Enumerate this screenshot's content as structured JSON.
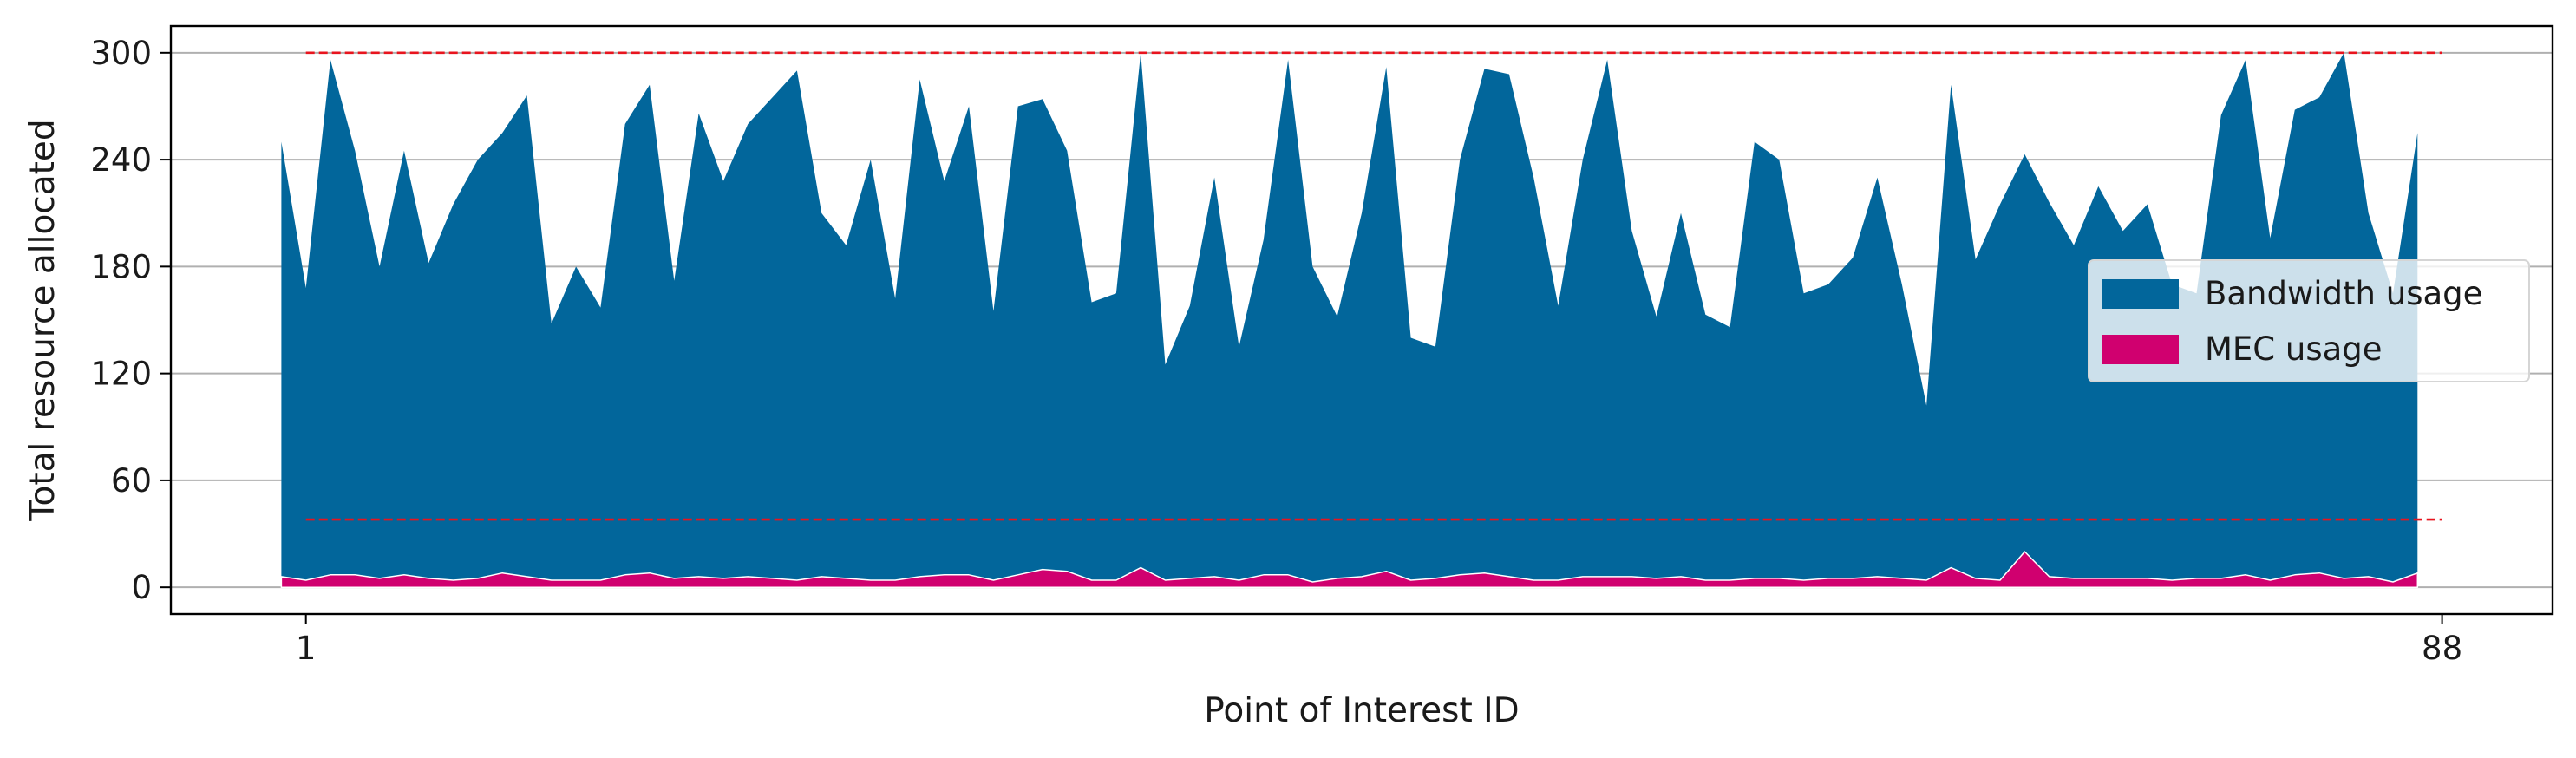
{
  "chart_data": {
    "type": "area",
    "title": "",
    "xlabel": "Point of Interest ID",
    "ylabel": "Total resource allocated",
    "x_ticks": [
      1,
      88
    ],
    "y_ticks": [
      0,
      60,
      120,
      180,
      240,
      300
    ],
    "xlim": [
      -4.5,
      92.5
    ],
    "ylim": [
      -15,
      315
    ],
    "x_start": 0,
    "grid": "horizontal",
    "legend_position": "center-right",
    "series": [
      {
        "name": "Bandwidth usage",
        "color": "#02669b",
        "values": [
          250,
          168,
          296,
          245,
          180,
          245,
          182,
          215,
          240,
          255,
          276,
          148,
          180,
          157,
          260,
          282,
          172,
          266,
          228,
          260,
          275,
          290,
          210,
          192,
          240,
          162,
          285,
          228,
          270,
          155,
          270,
          274,
          245,
          160,
          165,
          300,
          125,
          158,
          230,
          135,
          195,
          296,
          180,
          152,
          210,
          292,
          140,
          135,
          240,
          291,
          288,
          230,
          158,
          240,
          296,
          200,
          152,
          210,
          153,
          146,
          250,
          240,
          165,
          170,
          185,
          230,
          170,
          102,
          282,
          184,
          215,
          243,
          216,
          192,
          225,
          200,
          215,
          170,
          165,
          265,
          296,
          196,
          268,
          275,
          300,
          210,
          165,
          255
        ]
      },
      {
        "name": "MEC usage",
        "color": "#d0006f",
        "values": [
          6,
          4,
          7,
          7,
          5,
          7,
          5,
          4,
          5,
          8,
          6,
          4,
          4,
          4,
          7,
          8,
          5,
          6,
          5,
          6,
          5,
          4,
          6,
          5,
          4,
          4,
          6,
          7,
          7,
          4,
          7,
          10,
          9,
          4,
          4,
          11,
          4,
          5,
          6,
          4,
          7,
          7,
          3,
          5,
          6,
          9,
          4,
          5,
          7,
          8,
          6,
          4,
          4,
          6,
          6,
          6,
          5,
          6,
          4,
          4,
          5,
          5,
          4,
          5,
          5,
          6,
          5,
          4,
          11,
          5,
          4,
          20,
          6,
          5,
          5,
          5,
          5,
          4,
          5,
          5,
          7,
          4,
          7,
          8,
          5,
          6,
          3,
          8
        ]
      }
    ],
    "reference_lines": [
      {
        "y": 300,
        "x_from": 1,
        "x_to": 88,
        "color": "#e8141e",
        "style": "dashed"
      },
      {
        "y": 38,
        "x_from": 1,
        "x_to": 88,
        "color": "#e8141e",
        "style": "dashed"
      }
    ]
  }
}
